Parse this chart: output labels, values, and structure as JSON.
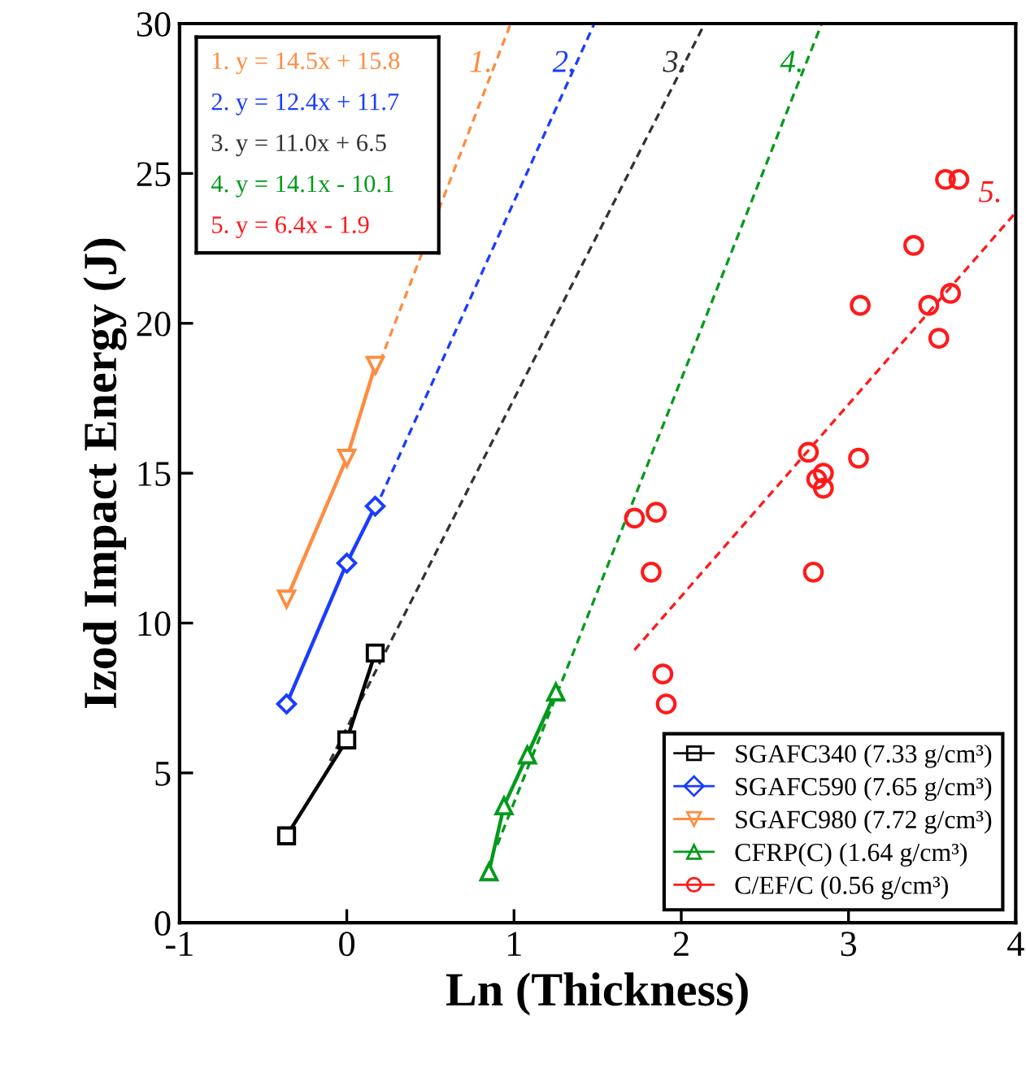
{
  "chart_data": {
    "type": "line",
    "xlabel": "Ln (Thickness)",
    "ylabel": "Izod Impact Energy (J)",
    "xlim": [
      -1,
      4
    ],
    "xticks": [
      -1,
      0,
      1,
      2,
      3,
      4
    ],
    "ylim": [
      0,
      30
    ],
    "yticks": [
      0,
      5,
      10,
      15,
      20,
      25,
      30
    ],
    "grid": false,
    "legend": "bottom right",
    "series": [
      {
        "name": "SGAFC340 (7.33 g/cm³)",
        "color": "#000000",
        "marker": "square",
        "line_style": "solid",
        "x": [
          -0.36,
          0,
          0.17
        ],
        "values": [
          2.9,
          6.1,
          9.0
        ]
      },
      {
        "name": "SGAFC590 (7.65 g/cm³)",
        "color": "#1a3cff",
        "marker": "diamond",
        "line_style": "solid",
        "x": [
          -0.36,
          0,
          0.17
        ],
        "values": [
          7.3,
          12.0,
          13.9
        ]
      },
      {
        "name": "SGAFC980 (7.72 g/cm³)",
        "color": "#ff8c40",
        "marker": "triangle_down",
        "line_style": "solid",
        "x": [
          -0.36,
          0,
          0.17
        ],
        "values": [
          10.8,
          15.5,
          18.6
        ]
      },
      {
        "name": "CFRP(C) (1.64 g/cm³)",
        "color": "#009a1a",
        "marker": "triangle",
        "line_style": "solid",
        "x": [
          0.85,
          0.94,
          1.08,
          1.25
        ],
        "values": [
          1.7,
          3.9,
          5.6,
          7.7
        ]
      },
      {
        "name": "C/EF/C (0.56 g/cm³)",
        "type": "scatter",
        "color": "#ff1a1a",
        "marker": "circle",
        "x": [
          3.58,
          3.66,
          3.39,
          3.07,
          3.48,
          3.61,
          3.54,
          2.76,
          3.06,
          2.85,
          2.81,
          2.85,
          2.79,
          1.72,
          1.85,
          1.82,
          1.89,
          1.91
        ],
        "values": [
          24.8,
          24.8,
          22.6,
          20.6,
          20.6,
          21.0,
          19.5,
          15.7,
          15.5,
          15.0,
          14.8,
          14.5,
          11.7,
          13.5,
          13.7,
          11.7,
          8.3,
          7.3
        ]
      },
      {
        "color": "#ff8c40",
        "marker": "none",
        "line_style": "dashed",
        "x": [
          0.17,
          0.98
        ],
        "values": [
          18.3,
          30
        ]
      },
      {
        "color": "#1a3cff",
        "marker": "none",
        "line_style": "dashed",
        "x": [
          0.17,
          1.48
        ],
        "values": [
          13.8,
          30
        ]
      },
      {
        "color": "#333333",
        "marker": "none",
        "line_style": "dashed",
        "x": [
          -0.1,
          2.14
        ],
        "values": [
          5.4,
          30
        ]
      },
      {
        "color": "#009a1a",
        "marker": "none",
        "line_style": "dashed",
        "x": [
          0.9,
          2.84
        ],
        "values": [
          2.6,
          30
        ]
      },
      {
        "color": "#ff1a1a",
        "marker": "none",
        "line_style": "dashed",
        "x": [
          1.72,
          4.0
        ],
        "values": [
          9.1,
          23.7
        ]
      }
    ],
    "annotations": [
      "1. y = 14.5x + 15.8",
      "2. y = 12.4x + 11.7",
      "3. y = 11.0x + 6.5",
      "4. y = 14.1x - 10.1",
      "5. y = 6.4x - 1.9",
      "1.",
      "2.",
      "3.",
      "4.",
      "5."
    ]
  }
}
